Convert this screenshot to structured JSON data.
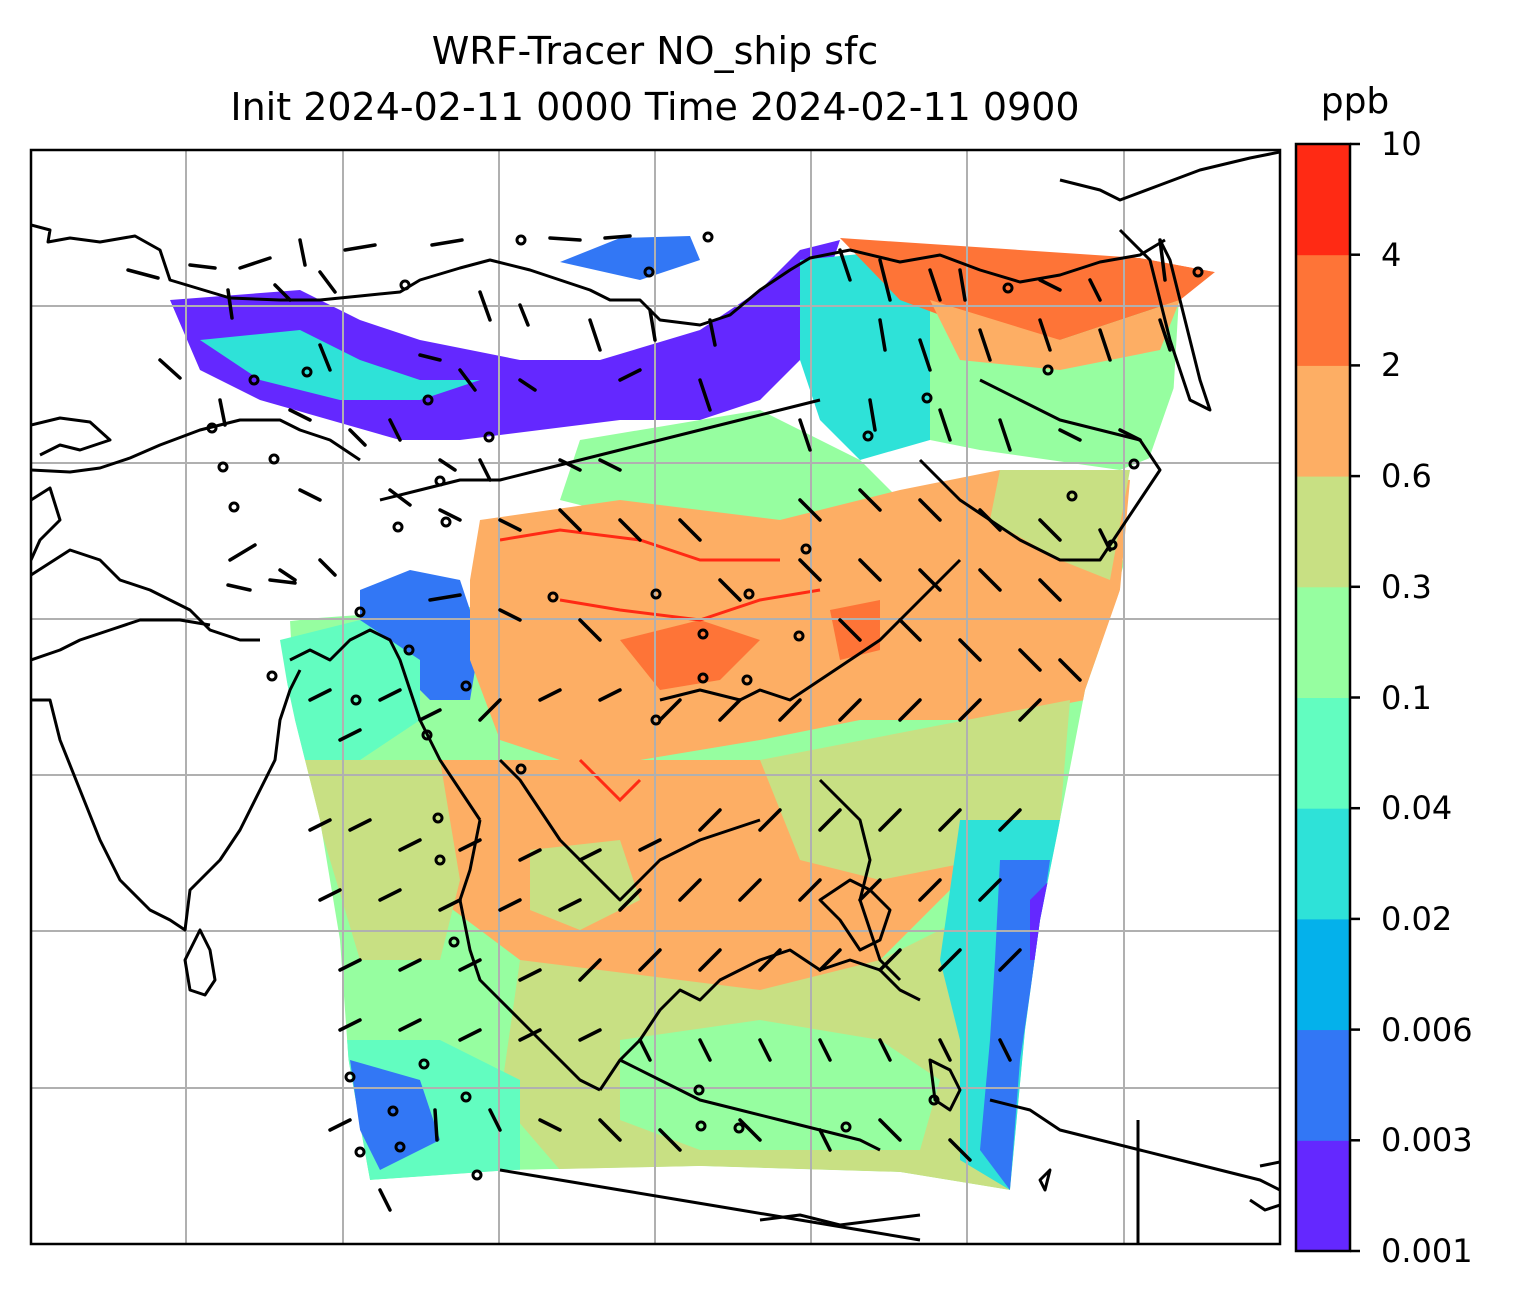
{
  "title": {
    "line1": "WRF-Tracer NO_ship sfc",
    "line2": "Init 2024-02-11 0000 Time 2024-02-11 0900"
  },
  "colorbar": {
    "units": "ppb",
    "levels": [
      "0.001",
      "0.003",
      "0.006",
      "0.02",
      "0.04",
      "0.1",
      "0.3",
      "0.6",
      "2",
      "4",
      "10"
    ],
    "colors": [
      "#6428ff",
      "#3277f5",
      "#04b1eb",
      "#2ee2d8",
      "#62fdc0",
      "#96fea0",
      "#c8e083",
      "#fdae64",
      "#fe7437",
      "#ff2a14"
    ]
  },
  "map": {
    "field": "NO_ship surface concentration",
    "wind_barbs": true,
    "coastlines": true,
    "gridlines": true
  }
}
